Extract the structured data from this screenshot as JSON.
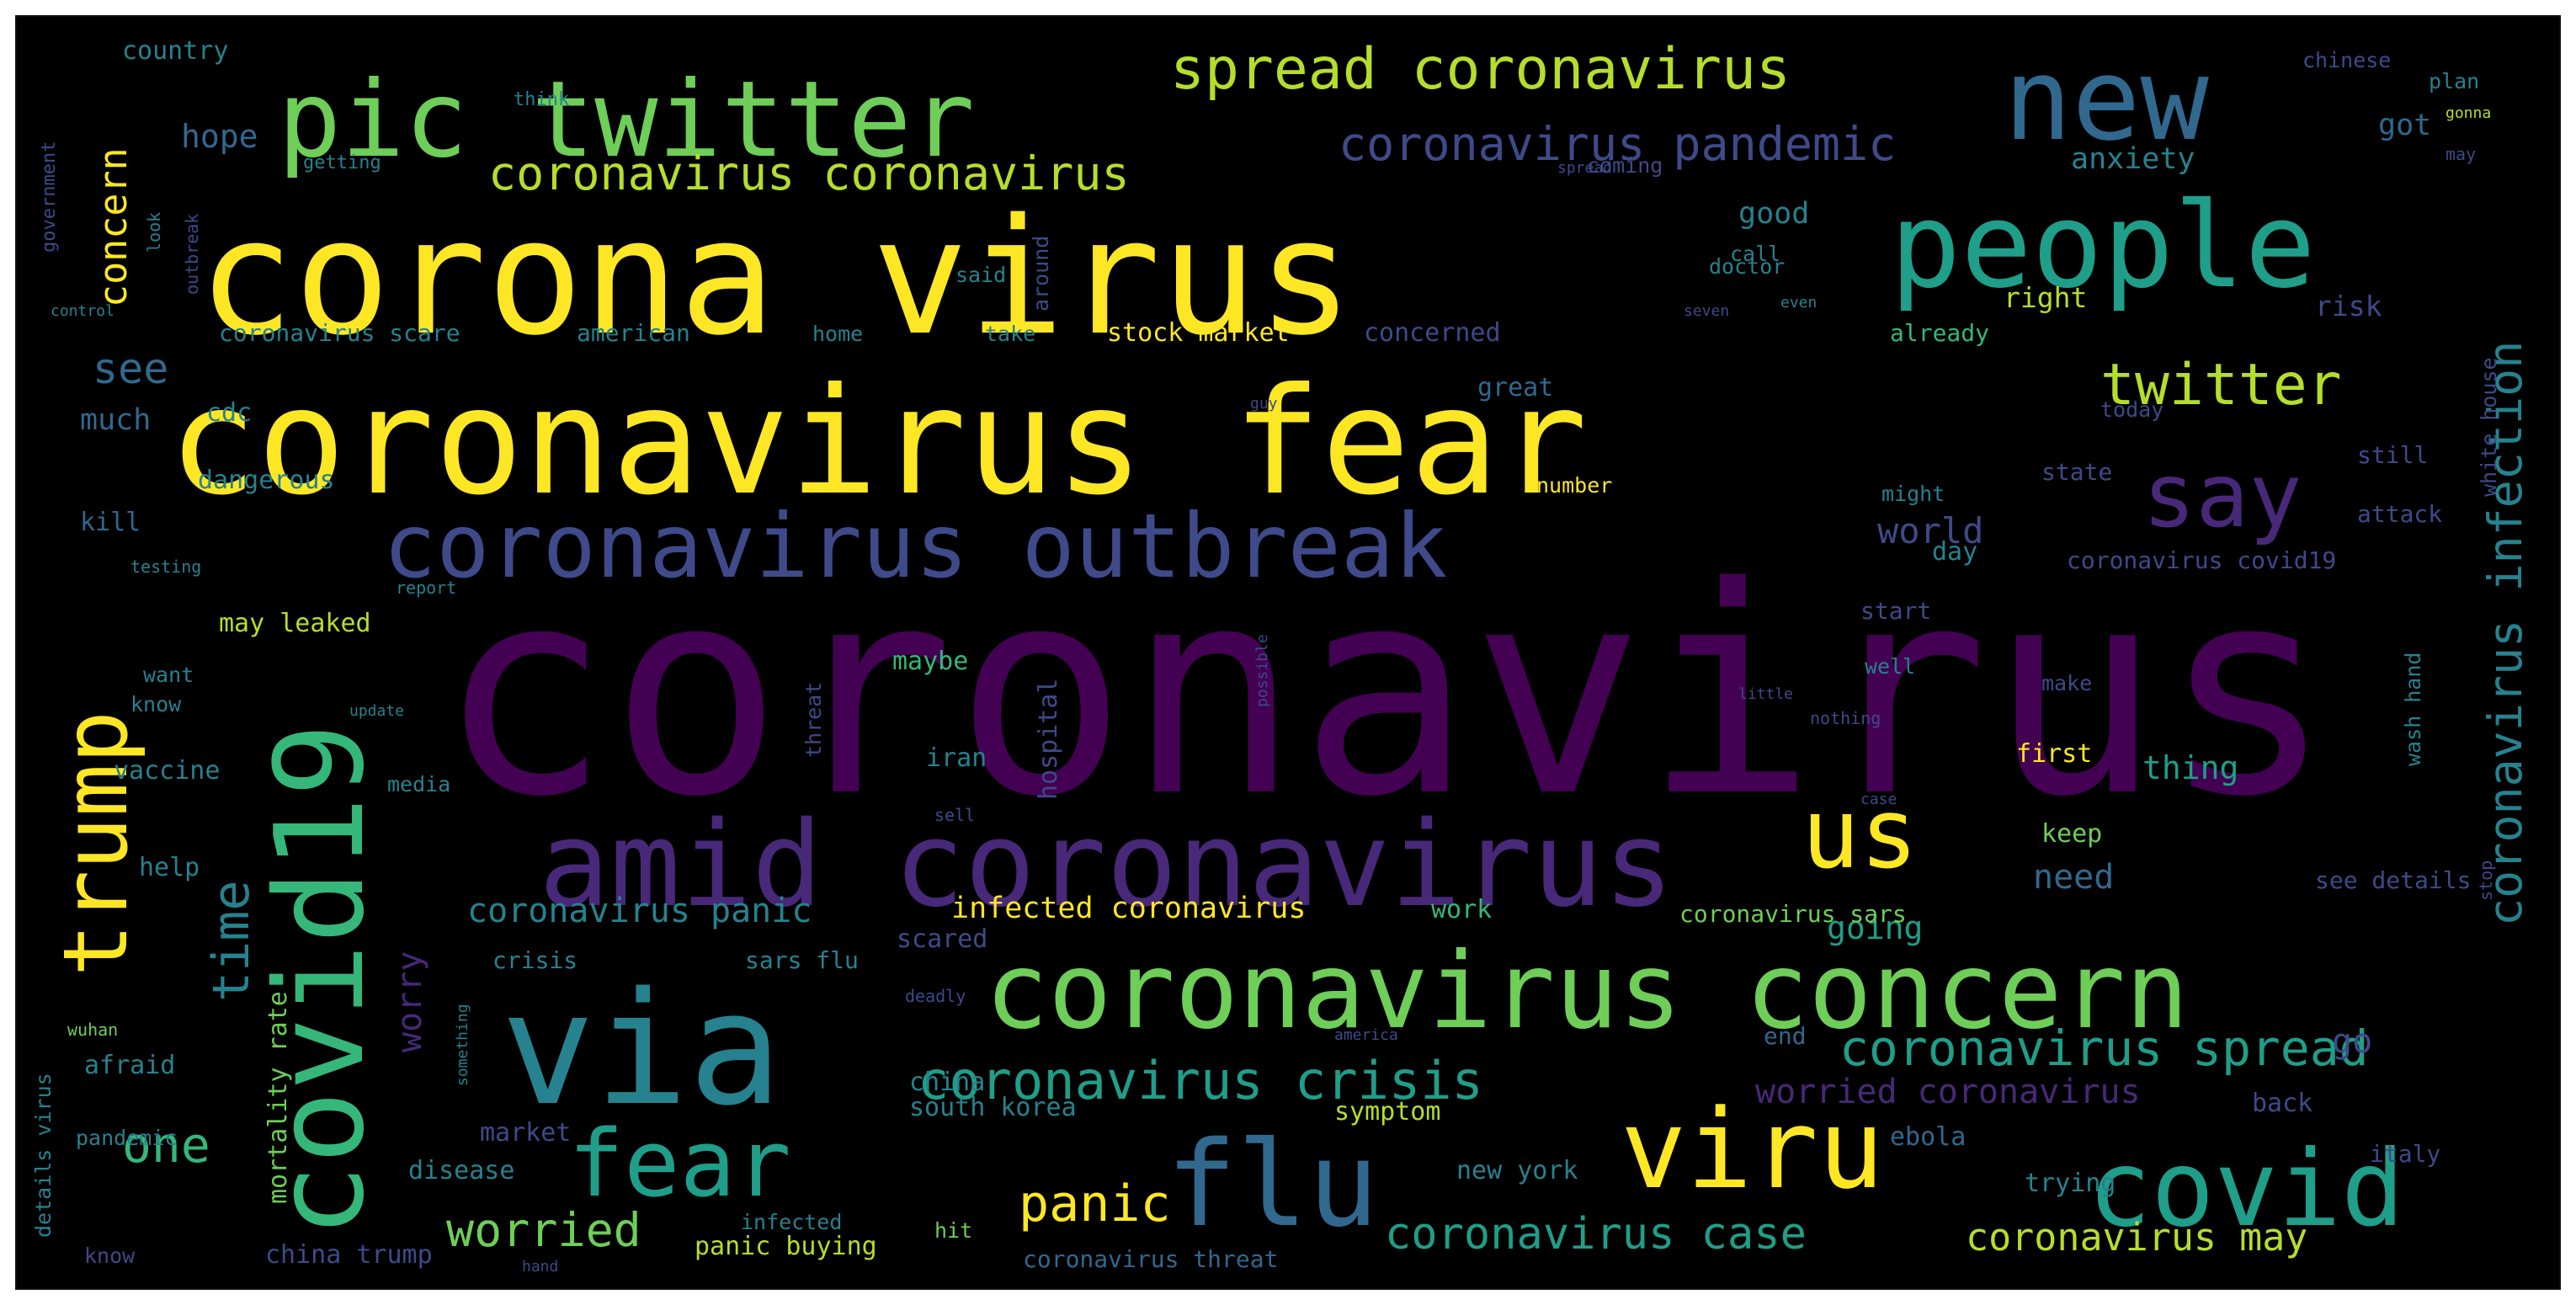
{
  "palette": [
    "#440154",
    "#482878",
    "#3e4a89",
    "#31688e",
    "#26828e",
    "#1f9e89",
    "#35b779",
    "#6ece58",
    "#b5de2b",
    "#fde725"
  ],
  "words": [
    {
      "text": "coronavirus",
      "color": "#440154"
    },
    {
      "text": "corona virus",
      "color": "#fde725"
    },
    {
      "text": "coronavirus fear",
      "color": "#fde725"
    },
    {
      "text": "amid coronavirus",
      "color": "#482878"
    },
    {
      "text": "coronavirus outbreak",
      "color": "#3e4a89"
    },
    {
      "text": "covid19",
      "color": "#35b779"
    },
    {
      "text": "via",
      "color": "#26828e"
    },
    {
      "text": "coronavirus concern",
      "color": "#6ece58"
    },
    {
      "text": "pic twitter",
      "color": "#6ece58"
    },
    {
      "text": "people",
      "color": "#1f9e89"
    },
    {
      "text": "new",
      "color": "#31688e"
    },
    {
      "text": "trump",
      "color": "#fde725"
    },
    {
      "text": "covid",
      "color": "#1f9e89"
    },
    {
      "text": "viru",
      "color": "#fde725"
    },
    {
      "text": "flu",
      "color": "#31688e"
    },
    {
      "text": "fear",
      "color": "#1f9e89"
    },
    {
      "text": "us",
      "color": "#fde725"
    },
    {
      "text": "say",
      "color": "#482878"
    },
    {
      "text": "spread coronavirus",
      "color": "#b5de2b"
    },
    {
      "text": "twitter",
      "color": "#b5de2b"
    },
    {
      "text": "coronavirus pandemic",
      "color": "#3e4a89"
    },
    {
      "text": "coronavirus coronavirus",
      "color": "#b5de2b"
    },
    {
      "text": "coronavirus crisis",
      "color": "#1f9e89"
    },
    {
      "text": "coronavirus spread",
      "color": "#1f9e89"
    },
    {
      "text": "coronavirus infection",
      "color": "#26828e"
    },
    {
      "text": "coronavirus case",
      "color": "#1f9e89"
    },
    {
      "text": "time",
      "color": "#26828e"
    },
    {
      "text": "one",
      "color": "#35b779"
    },
    {
      "text": "worried",
      "color": "#6ece58"
    },
    {
      "text": "panic",
      "color": "#fde725"
    },
    {
      "text": "coronavirus may",
      "color": "#b5de2b"
    },
    {
      "text": "worried coronavirus",
      "color": "#482878"
    },
    {
      "text": "coronavirus panic",
      "color": "#26828e"
    },
    {
      "text": "infected coronavirus",
      "color": "#fde725"
    },
    {
      "text": "concern",
      "color": "#fde725"
    },
    {
      "text": "hope",
      "color": "#31688e"
    },
    {
      "text": "see",
      "color": "#31688e"
    },
    {
      "text": "much",
      "color": "#31688e"
    },
    {
      "text": "world",
      "color": "#3e4a89"
    },
    {
      "text": "need",
      "color": "#31688e"
    },
    {
      "text": "going",
      "color": "#1f9e89"
    },
    {
      "text": "thing",
      "color": "#1f9e89"
    },
    {
      "text": "worry",
      "color": "#482878"
    },
    {
      "text": "got",
      "color": "#31688e"
    },
    {
      "text": "anxiety",
      "color": "#26828e"
    },
    {
      "text": "good",
      "color": "#26828e"
    },
    {
      "text": "right",
      "color": "#b5de2b"
    },
    {
      "text": "risk",
      "color": "#3e4a89"
    },
    {
      "text": "today",
      "color": "#3e4a89"
    },
    {
      "text": "still",
      "color": "#3e4a89"
    },
    {
      "text": "state",
      "color": "#3e4a89"
    },
    {
      "text": "attack",
      "color": "#3e4a89"
    },
    {
      "text": "day",
      "color": "#26828e"
    },
    {
      "text": "start",
      "color": "#3e4a89"
    },
    {
      "text": "first",
      "color": "#fde725"
    },
    {
      "text": "keep",
      "color": "#6ece58"
    },
    {
      "text": "go",
      "color": "#3e4a89"
    },
    {
      "text": "back",
      "color": "#3e4a89"
    },
    {
      "text": "ebola",
      "color": "#31688e"
    },
    {
      "text": "trying",
      "color": "#26828e"
    },
    {
      "text": "italy",
      "color": "#3e4a89"
    },
    {
      "text": "end",
      "color": "#31688e"
    },
    {
      "text": "country",
      "color": "#26828e"
    },
    {
      "text": "government",
      "color": "#3e4a89"
    },
    {
      "text": "think",
      "color": "#26828e"
    },
    {
      "text": "getting",
      "color": "#26828e"
    },
    {
      "text": "outbreak",
      "color": "#3e4a89"
    },
    {
      "text": "look",
      "color": "#26828e"
    },
    {
      "text": "coronavirus scare",
      "color": "#26828e"
    },
    {
      "text": "american",
      "color": "#26828e"
    },
    {
      "text": "home",
      "color": "#26828e"
    },
    {
      "text": "take",
      "color": "#26828e"
    },
    {
      "text": "stock market",
      "color": "#fde725"
    },
    {
      "text": "concerned",
      "color": "#3e4a89"
    },
    {
      "text": "already",
      "color": "#35b779"
    },
    {
      "text": "great",
      "color": "#31688e"
    },
    {
      "text": "number",
      "color": "#fde725"
    },
    {
      "text": "might",
      "color": "#26828e"
    },
    {
      "text": "said",
      "color": "#26828e"
    },
    {
      "text": "around",
      "color": "#3e4a89"
    },
    {
      "text": "doctor",
      "color": "#26828e"
    },
    {
      "text": "coming",
      "color": "#3e4a89"
    },
    {
      "text": "dangerous",
      "color": "#26828e"
    },
    {
      "text": "kill",
      "color": "#31688e"
    },
    {
      "text": "cdc",
      "color": "#26828e"
    },
    {
      "text": "testing",
      "color": "#26828e"
    },
    {
      "text": "report",
      "color": "#26828e"
    },
    {
      "text": "may leaked",
      "color": "#b5de2b"
    },
    {
      "text": "want",
      "color": "#26828e"
    },
    {
      "text": "know",
      "color": "#26828e"
    },
    {
      "text": "maybe",
      "color": "#35b779"
    },
    {
      "text": "hospital",
      "color": "#3e4a89"
    },
    {
      "text": "threat",
      "color": "#3e4a89"
    },
    {
      "text": "iran",
      "color": "#26828e"
    },
    {
      "text": "vaccine",
      "color": "#26828e"
    },
    {
      "text": "media",
      "color": "#26828e"
    },
    {
      "text": "help",
      "color": "#26828e"
    },
    {
      "text": "crisis",
      "color": "#26828e"
    },
    {
      "text": "scared",
      "color": "#3e4a89"
    },
    {
      "text": "sars flu",
      "color": "#26828e"
    },
    {
      "text": "deadly",
      "color": "#3e4a89"
    },
    {
      "text": "wuhan",
      "color": "#6ece58"
    },
    {
      "text": "afraid",
      "color": "#26828e"
    },
    {
      "text": "mortality rate",
      "color": "#6ece58"
    },
    {
      "text": "china",
      "color": "#26828e"
    },
    {
      "text": "south korea",
      "color": "#26828e"
    },
    {
      "text": "symptom",
      "color": "#b5de2b"
    },
    {
      "text": "market",
      "color": "#3e4a89"
    },
    {
      "text": "disease",
      "color": "#26828e"
    },
    {
      "text": "pandemic",
      "color": "#26828e"
    },
    {
      "text": "new york",
      "color": "#26828e"
    },
    {
      "text": "infected",
      "color": "#26828e"
    },
    {
      "text": "hit",
      "color": "#6ece58"
    },
    {
      "text": "panic buying",
      "color": "#b5de2b"
    },
    {
      "text": "china trump",
      "color": "#3e4a89"
    },
    {
      "text": "know",
      "color": "#3e4a89"
    },
    {
      "text": "details virus",
      "color": "#26828e"
    },
    {
      "text": "coronavirus threat",
      "color": "#31688e"
    },
    {
      "text": "coronavirus sars",
      "color": "#6ece58"
    },
    {
      "text": "work",
      "color": "#35b779"
    },
    {
      "text": "coronavirus covid19",
      "color": "#3e4a89"
    },
    {
      "text": "wash hand",
      "color": "#26828e"
    },
    {
      "text": "white house",
      "color": "#3e4a89"
    },
    {
      "text": "chinese",
      "color": "#3e4a89"
    },
    {
      "text": "plan",
      "color": "#26828e"
    },
    {
      "text": "gonna",
      "color": "#b5de2b"
    },
    {
      "text": "may",
      "color": "#3e4a89"
    },
    {
      "text": "even",
      "color": "#26828e"
    },
    {
      "text": "call",
      "color": "#26828e"
    },
    {
      "text": "well",
      "color": "#26828e"
    },
    {
      "text": "make",
      "color": "#3e4a89"
    },
    {
      "text": "little",
      "color": "#3e4a89"
    },
    {
      "text": "nothing",
      "color": "#3e4a89"
    },
    {
      "text": "possible",
      "color": "#3e4a89"
    },
    {
      "text": "update",
      "color": "#26828e"
    },
    {
      "text": "sell",
      "color": "#3e4a89"
    },
    {
      "text": "stop",
      "color": "#3e4a89"
    },
    {
      "text": "case",
      "color": "#3e4a89"
    },
    {
      "text": "something",
      "color": "#26828e"
    },
    {
      "text": "america",
      "color": "#3e4a89"
    },
    {
      "text": "control",
      "color": "#26828e"
    },
    {
      "text": "hand",
      "color": "#3e4a89"
    },
    {
      "text": "guy",
      "color": "#3e4a89"
    },
    {
      "text": "seven",
      "color": "#3e4a89"
    },
    {
      "text": "spread",
      "color": "#3e4a89"
    },
    {
      "text": "see details",
      "color": "#3e4a89"
    }
  ]
}
